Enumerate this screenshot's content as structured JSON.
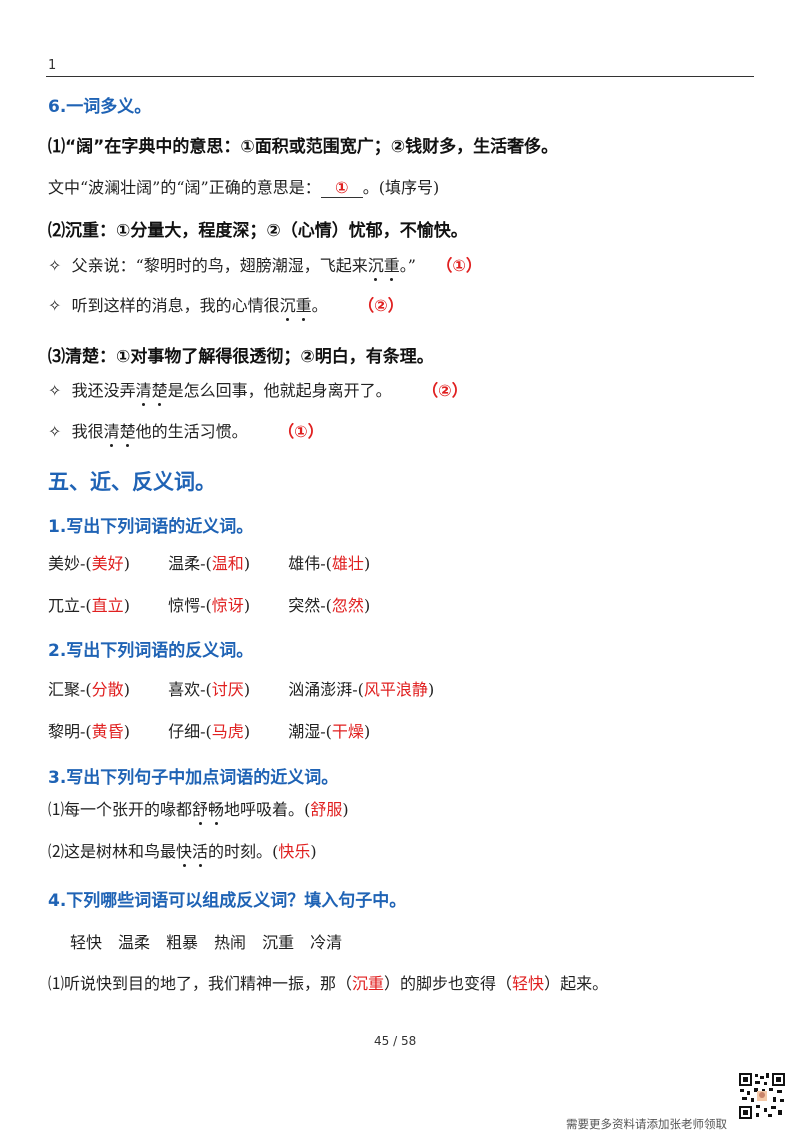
{
  "header": {
    "page_number": "1"
  },
  "sec6": {
    "title": "6.一词多义。",
    "q1": {
      "title": "⑴“阔”在字典中的意思：①面积或范围宽广；②钱财多，生活奢侈。",
      "prompt_before": "文中“波澜壮阔”的“阔”正确的意思是：",
      "answer": "①",
      "prompt_after": "。(填序号)"
    },
    "q2": {
      "title": "⑵沉重：①分量大，程度深；②（心情）忧郁，不愉快。",
      "items": [
        {
          "bullet": "✧",
          "pre": "父亲说：“黎明时的鸟，翅膀潮湿，飞起来",
          "dotted": [
            "沉",
            "重"
          ],
          "post": "。”",
          "answer": "（①）"
        },
        {
          "bullet": "✧",
          "pre": "听到这样的消息，我的心情很",
          "dotted": [
            "沉",
            "重"
          ],
          "post": "。",
          "answer": "（②）"
        }
      ]
    },
    "q3": {
      "title": "⑶清楚：①对事物了解得很透彻；②明白，有条理。",
      "items": [
        {
          "bullet": "✧",
          "pre": "我还没弄",
          "dotted": [
            "清",
            "楚"
          ],
          "post": "是怎么回事，他就起身离开了。",
          "answer": "（②）"
        },
        {
          "bullet": "✧",
          "pre": "我很",
          "dotted": [
            "清",
            "楚"
          ],
          "post": "他的生活习惯。",
          "answer": "（①）"
        }
      ]
    }
  },
  "sec5": {
    "title": "五、近、反义词。",
    "s1": {
      "title": "1.写出下列词语的近义词。",
      "rows": [
        [
          {
            "word": "美妙-",
            "answer": "美好"
          },
          {
            "word": "温柔-",
            "answer": "温和"
          },
          {
            "word": "雄伟-",
            "answer": "雄壮"
          }
        ],
        [
          {
            "word": "兀立-",
            "answer": "直立"
          },
          {
            "word": "惊愕-",
            "answer": "惊讶"
          },
          {
            "word": "突然-",
            "answer": "忽然"
          }
        ]
      ]
    },
    "s2": {
      "title": "2.写出下列词语的反义词。",
      "rows": [
        [
          {
            "word": "汇聚-",
            "answer": "分散"
          },
          {
            "word": "喜欢-",
            "answer": "讨厌"
          },
          {
            "word": "汹涌澎湃-",
            "answer": "风平浪静"
          }
        ],
        [
          {
            "word": "黎明-",
            "answer": "黄昏"
          },
          {
            "word": "仔细-",
            "answer": "马虎"
          },
          {
            "word": "潮湿-",
            "answer": "干燥"
          }
        ]
      ]
    },
    "s3": {
      "title": "3.写出下列句子中加点词语的近义词。",
      "items": [
        {
          "pre": "⑴每一个张开的喙都",
          "dotted": [
            "舒",
            "畅"
          ],
          "post": "地呼吸着。",
          "answer": "舒服"
        },
        {
          "pre": "⑵这是树林和鸟最",
          "dotted": [
            "快",
            "活"
          ],
          "post": "的时刻。",
          "answer": "快乐"
        }
      ]
    },
    "s4": {
      "title": "4.下列哪些词语可以组成反义词？填入句子中。",
      "words": [
        "轻快",
        "温柔",
        "粗暴",
        "热闹",
        "沉重",
        "冷清"
      ],
      "sentence": {
        "part1": "⑴听说快到目的地了，我们精神一振，那（",
        "ans1": "沉重",
        "part2": "）的脚步也变得（",
        "ans2": "轻快",
        "part3": "）起来。"
      }
    }
  },
  "footer": {
    "page_indicator": "45 / 58",
    "note": "需要更多资料请添加张老师领取"
  },
  "colors": {
    "heading_blue": "#1f63b5",
    "answer_red": "#e02020"
  }
}
